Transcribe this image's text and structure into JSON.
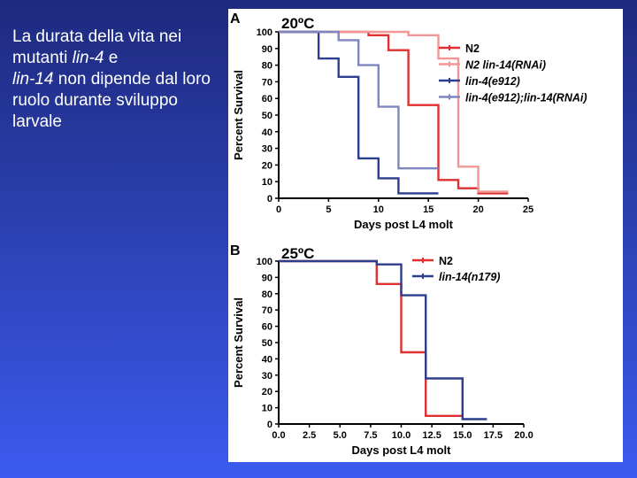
{
  "caption": {
    "part1": "La durata della vita nei mutanti ",
    "gene1": "lin-4",
    "part2": " e ",
    "gene2": "lin-14",
    "part3": " non dipende dal loro ruolo durante sviluppo larvale"
  },
  "chart_data": [
    {
      "type": "line",
      "panel": "A",
      "title": "20ºC",
      "xlabel": "Days post L4 molt",
      "ylabel": "Percent Survival",
      "xlim": [
        0,
        25
      ],
      "ylim": [
        0,
        100
      ],
      "xticks": [
        "0",
        "5",
        "10",
        "15",
        "20",
        "25"
      ],
      "yticks": [
        "0",
        "10",
        "20",
        "30",
        "40",
        "50",
        "60",
        "70",
        "80",
        "90",
        "100"
      ],
      "legend_position": "top-right",
      "series": [
        {
          "name": "N2",
          "color": "#e03030",
          "x": [
            0,
            9,
            9,
            11,
            11,
            13,
            13,
            16,
            16,
            18,
            18,
            20,
            20,
            23
          ],
          "y": [
            100,
            100,
            98,
            98,
            89,
            89,
            56,
            56,
            11,
            11,
            6,
            6,
            3,
            3
          ]
        },
        {
          "name": "N2 lin-14(RNAi)",
          "color": "#f29696",
          "x": [
            0,
            13,
            13,
            16,
            16,
            18,
            18,
            20,
            20,
            23
          ],
          "y": [
            100,
            100,
            98,
            98,
            84,
            84,
            19,
            19,
            4,
            4
          ]
        },
        {
          "name": "lin-4(e912)",
          "color": "#2c3e8c",
          "x": [
            0,
            4,
            4,
            6,
            6,
            8,
            8,
            10,
            10,
            12,
            12,
            16
          ],
          "y": [
            100,
            100,
            84,
            84,
            73,
            73,
            24,
            24,
            12,
            12,
            3,
            3
          ]
        },
        {
          "name": "lin-4(e912);lin-14(RNAi)",
          "color": "#7d86bf",
          "x": [
            0,
            6,
            6,
            8,
            8,
            10,
            10,
            12,
            12,
            13,
            13,
            16
          ],
          "y": [
            100,
            100,
            95,
            95,
            80,
            80,
            55,
            55,
            18,
            18,
            18,
            18
          ]
        }
      ]
    },
    {
      "type": "line",
      "panel": "B",
      "title": "25ºC",
      "xlabel": "Days post L4 molt",
      "ylabel": "Percent Survival",
      "xlim": [
        0,
        20
      ],
      "ylim": [
        0,
        100
      ],
      "xticks": [
        "0.0",
        "2.5",
        "5.0",
        "7.5",
        "10.0",
        "12.5",
        "15.0",
        "17.5",
        "20.0"
      ],
      "yticks": [
        "0",
        "10",
        "20",
        "30",
        "40",
        "50",
        "60",
        "70",
        "80",
        "90",
        "100"
      ],
      "legend_position": "top-right",
      "series": [
        {
          "name": "N2",
          "color": "#e03030",
          "x": [
            0,
            8,
            8,
            10,
            10,
            12,
            12,
            15
          ],
          "y": [
            100,
            100,
            86,
            86,
            44,
            44,
            5,
            5
          ]
        },
        {
          "name": "lin-14(n179)",
          "color": "#2c3e8c",
          "x": [
            0,
            8,
            8,
            10,
            10,
            12,
            12,
            15,
            15,
            17
          ],
          "y": [
            100,
            100,
            98,
            98,
            79,
            79,
            28,
            28,
            3,
            3
          ]
        }
      ]
    }
  ]
}
